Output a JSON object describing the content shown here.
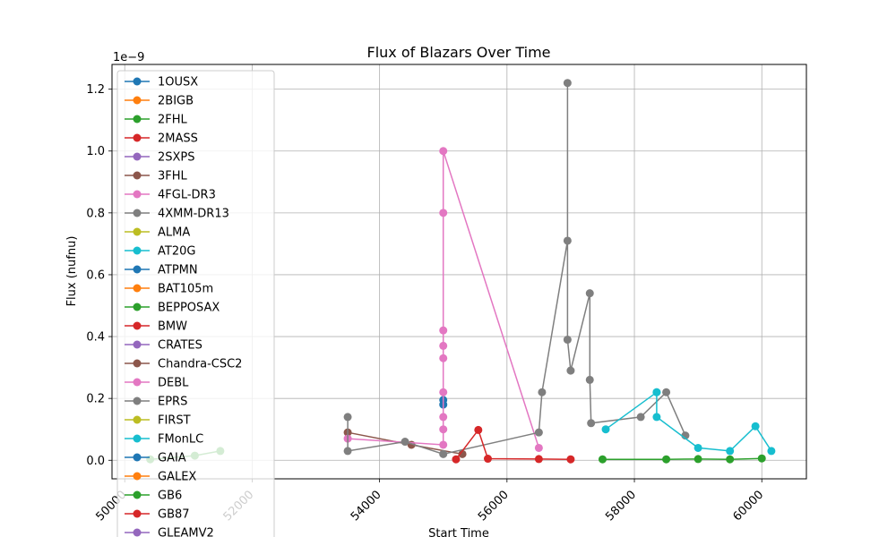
{
  "chart_data": {
    "type": "line",
    "title": "Flux of Blazars Over Time",
    "xlabel": "Start Time",
    "ylabel": "Flux (nufnu)",
    "y_offset_text": "1e−9",
    "y_scale_factor": 1e-09,
    "xlim": [
      49800,
      60700
    ],
    "ylim": [
      -0.06,
      1.28
    ],
    "x_ticks": [
      50000,
      52000,
      54000,
      56000,
      58000,
      60000
    ],
    "x_tick_labels": [
      "50000",
      "52000",
      "54000",
      "56000",
      "58000",
      "60000"
    ],
    "y_ticks": [
      0.0,
      0.2,
      0.4,
      0.6,
      0.8,
      1.0,
      1.2
    ],
    "y_tick_labels": [
      "0.0",
      "0.2",
      "0.4",
      "0.6",
      "0.8",
      "1.0",
      "1.2"
    ],
    "grid": true,
    "legend_position": "top-left",
    "series": [
      {
        "name": "1OUSX",
        "color": "#1f77b4",
        "x": [
          55000,
          55000
        ],
        "y": [
          0.18,
          0.195
        ]
      },
      {
        "name": "2BIGB",
        "color": "#ff7f0e",
        "x": [],
        "y": []
      },
      {
        "name": "2FHL",
        "color": "#2ca02c",
        "x": [
          50400,
          51100,
          51500
        ],
        "y": [
          0.003,
          0.015,
          0.03
        ]
      },
      {
        "name": "2MASS",
        "color": "#d62728",
        "x": [],
        "y": []
      },
      {
        "name": "2SXPS",
        "color": "#9467bd",
        "x": [],
        "y": []
      },
      {
        "name": "3FHL",
        "color": "#8c564b",
        "x": [
          53500,
          54500,
          55300
        ],
        "y": [
          0.09,
          0.05,
          0.02
        ]
      },
      {
        "name": "4FGL-DR3",
        "color": "#e377c2",
        "x": [
          53500,
          55000,
          55000,
          55000,
          55000,
          55000,
          55000,
          55000,
          55000,
          55000,
          56500
        ],
        "y": [
          0.07,
          0.05,
          0.1,
          0.14,
          0.22,
          0.33,
          0.37,
          0.42,
          0.8,
          1.0,
          0.04
        ]
      },
      {
        "name": "4XMM-DR13",
        "color": "#7f7f7f",
        "x": [
          53500,
          53500,
          54400,
          55000,
          56500,
          56550,
          56950,
          56950,
          56950,
          57000,
          57300,
          57300,
          57320,
          58100,
          58500,
          58800
        ],
        "y": [
          0.14,
          0.03,
          0.06,
          0.02,
          0.09,
          0.22,
          0.71,
          1.22,
          0.39,
          0.29,
          0.54,
          0.26,
          0.12,
          0.14,
          0.22,
          0.08
        ]
      },
      {
        "name": "ALMA",
        "color": "#bcbd22",
        "x": [],
        "y": []
      },
      {
        "name": "AT20G",
        "color": "#17becf",
        "x": [
          58350,
          58350,
          59000,
          59500,
          59900,
          60150
        ],
        "y": [
          0.22,
          0.14,
          0.04,
          0.03,
          0.11,
          0.03
        ]
      },
      {
        "name": "ATPMN",
        "color": "#1f77b4",
        "x": [],
        "y": []
      },
      {
        "name": "BAT105m",
        "color": "#ff7f0e",
        "x": [],
        "y": []
      },
      {
        "name": "BEPPOSAX",
        "color": "#2ca02c",
        "x": [
          57500,
          58500,
          59000,
          59500,
          60000
        ],
        "y": [
          0.003,
          0.003,
          0.004,
          0.003,
          0.006
        ]
      },
      {
        "name": "BMW",
        "color": "#d62728",
        "x": [
          55200,
          55550,
          55700,
          56500,
          57000
        ],
        "y": [
          0.003,
          0.098,
          0.005,
          0.004,
          0.003
        ]
      },
      {
        "name": "CRATES",
        "color": "#9467bd",
        "x": [],
        "y": []
      },
      {
        "name": "Chandra-CSC2",
        "color": "#8c564b",
        "x": [],
        "y": []
      },
      {
        "name": "DEBL",
        "color": "#e377c2",
        "x": [],
        "y": []
      },
      {
        "name": "EPRS",
        "color": "#7f7f7f",
        "x": [],
        "y": []
      },
      {
        "name": "FIRST",
        "color": "#bcbd22",
        "x": [],
        "y": []
      },
      {
        "name": "FMonLC",
        "color": "#17becf",
        "x": [
          57550,
          58350
        ],
        "y": [
          0.1,
          0.22
        ]
      },
      {
        "name": "GAIA",
        "color": "#1f77b4",
        "x": [],
        "y": []
      },
      {
        "name": "GALEX",
        "color": "#ff7f0e",
        "x": [],
        "y": []
      },
      {
        "name": "GB6",
        "color": "#2ca02c",
        "x": [],
        "y": []
      },
      {
        "name": "GB87",
        "color": "#d62728",
        "x": [],
        "y": []
      },
      {
        "name": "GLEAMV2",
        "color": "#9467bd",
        "x": [],
        "y": []
      }
    ]
  }
}
